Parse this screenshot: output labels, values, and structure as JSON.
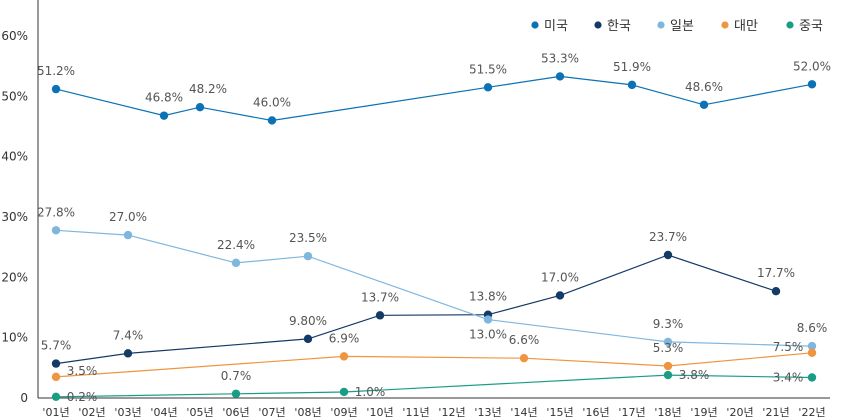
{
  "chart_data": {
    "type": "line",
    "categories": [
      "'01년",
      "'02년",
      "'03년",
      "'04년",
      "'05년",
      "'06년",
      "'07년",
      "'08년",
      "'09년",
      "'10년",
      "'11년",
      "'12년",
      "'13년",
      "'14년",
      "'15년",
      "'16년",
      "'17년",
      "'18년",
      "'19년",
      "'20년",
      "'21년",
      "'22년"
    ],
    "ylim": [
      0,
      60
    ],
    "yticks": [
      0,
      10,
      20,
      30,
      40,
      50,
      60
    ],
    "ytick_labels": [
      "0",
      "10%",
      "20%",
      "30%",
      "40%",
      "50%",
      "60%"
    ],
    "grid": false,
    "legend_position": "top-right",
    "series": [
      {
        "name": "미국",
        "color": "#0b72b5",
        "points": [
          {
            "x": "'01년",
            "y": 51.2,
            "label": "51.2%"
          },
          {
            "x": "'04년",
            "y": 46.8,
            "label": "46.8%"
          },
          {
            "x": "'05년",
            "y": 48.2,
            "label": "48.2%"
          },
          {
            "x": "'07년",
            "y": 46.0,
            "label": "46.0%"
          },
          {
            "x": "'13년",
            "y": 51.5,
            "label": "51.5%"
          },
          {
            "x": "'15년",
            "y": 53.3,
            "label": "53.3%"
          },
          {
            "x": "'17년",
            "y": 51.9,
            "label": "51.9%"
          },
          {
            "x": "'19년",
            "y": 48.6,
            "label": "48.6%"
          },
          {
            "x": "'22년",
            "y": 52.0,
            "label": "52.0%"
          }
        ]
      },
      {
        "name": "한국",
        "color": "#143a66",
        "points": [
          {
            "x": "'01년",
            "y": 5.7,
            "label": "5.7%"
          },
          {
            "x": "'03년",
            "y": 7.4,
            "label": "7.4%"
          },
          {
            "x": "'08년",
            "y": 9.8,
            "label": "9.80%"
          },
          {
            "x": "'10년",
            "y": 13.7,
            "label": "13.7%"
          },
          {
            "x": "'13년",
            "y": 13.8,
            "label": "13.8%"
          },
          {
            "x": "'15년",
            "y": 17.0,
            "label": "17.0%"
          },
          {
            "x": "'18년",
            "y": 23.7,
            "label": "23.7%"
          },
          {
            "x": "'21년",
            "y": 17.7,
            "label": "17.7%"
          }
        ]
      },
      {
        "name": "일본",
        "color": "#7fb6de",
        "points": [
          {
            "x": "'01년",
            "y": 27.8,
            "label": "27.8%"
          },
          {
            "x": "'03년",
            "y": 27.0,
            "label": "27.0%"
          },
          {
            "x": "'06년",
            "y": 22.4,
            "label": "22.4%"
          },
          {
            "x": "'08년",
            "y": 23.5,
            "label": "23.5%"
          },
          {
            "x": "'13년",
            "y": 13.0,
            "label": "13.0%"
          },
          {
            "x": "'18년",
            "y": 9.3,
            "label": "9.3%"
          },
          {
            "x": "'22년",
            "y": 8.6,
            "label": "8.6%"
          }
        ]
      },
      {
        "name": "대만",
        "color": "#f0953f",
        "points": [
          {
            "x": "'01년",
            "y": 3.5,
            "label": "3.5%"
          },
          {
            "x": "'09년",
            "y": 6.9,
            "label": "6.9%"
          },
          {
            "x": "'14년",
            "y": 6.6,
            "label": "6.6%"
          },
          {
            "x": "'18년",
            "y": 5.3,
            "label": "5.3%"
          },
          {
            "x": "'22년",
            "y": 7.5,
            "label": "7.5%"
          }
        ]
      },
      {
        "name": "중국",
        "color": "#1a9e83",
        "points": [
          {
            "x": "'01년",
            "y": 0.2,
            "label": "0.2%"
          },
          {
            "x": "'06년",
            "y": 0.7,
            "label": "0.7%"
          },
          {
            "x": "'09년",
            "y": 1.0,
            "label": "1.0%"
          },
          {
            "x": "'18년",
            "y": 3.8,
            "label": "3.8%"
          },
          {
            "x": "'22년",
            "y": 3.4,
            "label": "3.4%"
          }
        ]
      }
    ]
  }
}
